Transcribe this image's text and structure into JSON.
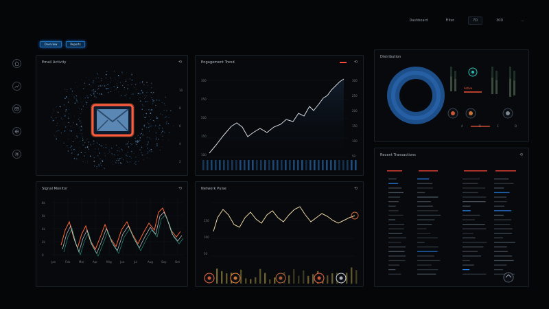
{
  "topbar": {
    "item1": "Dashboard",
    "item2": "Filter",
    "item3": "7D",
    "item4": "30D",
    "item5": "..."
  },
  "tabs": [
    {
      "label": "Overview"
    },
    {
      "label": "Reports"
    }
  ],
  "nav": [
    "home-icon",
    "chart-icon",
    "mail-icon",
    "globe-icon",
    "settings-icon"
  ],
  "panels": {
    "mail": {
      "title": "Email Activity",
      "ctl": "⟲",
      "ticks": [
        "10",
        "8",
        "6",
        "4",
        "2"
      ]
    },
    "trend": {
      "title": "Engagement Trend",
      "ctl": "⟲",
      "ticks_left": [
        "300",
        "250",
        "200",
        "150",
        "100"
      ],
      "ticks_right": [
        "300",
        "250",
        "200",
        "150",
        "100",
        "50"
      ]
    },
    "donut": {
      "title": "Distribution",
      "legend_label": "Active",
      "small_labels": [
        "A",
        "B",
        "C",
        "D"
      ]
    },
    "multi": {
      "title": "Signal Monitor",
      "ctl": "⟲",
      "y": [
        "8k",
        "6k",
        "4k",
        "2k",
        "0"
      ],
      "x": [
        "Jan",
        "Feb",
        "Mar",
        "Apr",
        "May",
        "Jun",
        "Jul",
        "Aug",
        "Sep",
        "Oct"
      ]
    },
    "wave": {
      "title": "Network Pulse",
      "ctl": "⟲",
      "y": [
        "150",
        "100",
        "50"
      ]
    },
    "table": {
      "title": "Recent Transactions",
      "ctl": "⟲"
    }
  },
  "colors": {
    "accent": "#2a8cff",
    "alert": "#ff5a3c",
    "line": "#d8dde3",
    "orange": "#ff8a3d"
  }
}
